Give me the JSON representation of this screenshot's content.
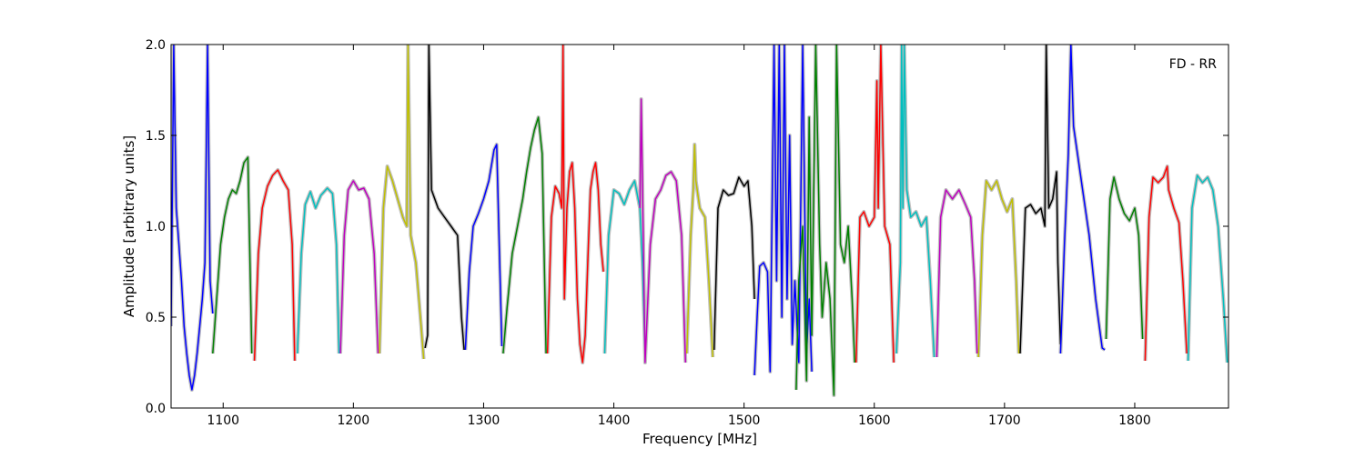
{
  "chart_data": {
    "type": "line",
    "annotation": "FD - RR",
    "xlabel": "Frequency [MHz]",
    "ylabel": "Amplitude [arbitrary units]",
    "xlim": [
      1060,
      1872
    ],
    "ylim": [
      0.0,
      2.0
    ],
    "xticks": [
      1100,
      1200,
      1300,
      1400,
      1500,
      1600,
      1700,
      1800
    ],
    "xtick_labels": [
      "1100",
      "1200",
      "1300",
      "1400",
      "1500",
      "1600",
      "1700",
      "1800"
    ],
    "yticks": [
      0.0,
      0.5,
      1.0,
      1.5,
      2.0
    ],
    "ytick_labels": [
      "0.0",
      "0.5",
      "1.0",
      "1.5",
      "2.0"
    ],
    "grid": false,
    "colors": {
      "background": "#c0c0c0",
      "blue": "#0000ff",
      "green": "#008000",
      "red": "#ff0000",
      "cyan": "#00bfbf",
      "magenta": "#bf00bf",
      "olive": "#bfbf00",
      "black": "#000000"
    },
    "series": [
      {
        "color": "#0000ff",
        "x": [
          1060,
          1062,
          1064,
          1066,
          1068,
          1070,
          1072,
          1074,
          1076,
          1078,
          1080,
          1082,
          1084,
          1086,
          1088,
          1090,
          1092
        ],
        "y": [
          0.45,
          2.0,
          1.1,
          0.9,
          0.7,
          0.45,
          0.3,
          0.18,
          0.1,
          0.18,
          0.3,
          0.45,
          0.6,
          0.8,
          2.0,
          0.7,
          0.52
        ]
      },
      {
        "color": "#008000",
        "x": [
          1092,
          1095,
          1098,
          1101,
          1104,
          1107,
          1110,
          1113,
          1116,
          1119,
          1122
        ],
        "y": [
          0.3,
          0.6,
          0.9,
          1.05,
          1.15,
          1.2,
          1.18,
          1.25,
          1.35,
          1.38,
          0.3
        ]
      },
      {
        "color": "#ff0000",
        "x": [
          1124,
          1127,
          1130,
          1134,
          1138,
          1142,
          1146,
          1150,
          1153,
          1155
        ],
        "y": [
          0.26,
          0.85,
          1.1,
          1.22,
          1.28,
          1.31,
          1.25,
          1.2,
          0.9,
          0.26
        ]
      },
      {
        "color": "#00bfbf",
        "x": [
          1157,
          1160,
          1163,
          1167,
          1171,
          1175,
          1180,
          1184,
          1187,
          1189
        ],
        "y": [
          0.3,
          0.85,
          1.12,
          1.19,
          1.1,
          1.17,
          1.21,
          1.18,
          0.9,
          0.3
        ]
      },
      {
        "color": "#bf00bf",
        "x": [
          1190,
          1193,
          1196,
          1200,
          1204,
          1208,
          1212,
          1216,
          1219
        ],
        "y": [
          0.3,
          0.95,
          1.2,
          1.25,
          1.2,
          1.21,
          1.15,
          0.85,
          0.3
        ]
      },
      {
        "color": "#bfbf00",
        "x": [
          1220,
          1223,
          1226,
          1230,
          1234,
          1238,
          1241,
          1242,
          1244,
          1248,
          1252,
          1254
        ],
        "y": [
          0.3,
          1.1,
          1.33,
          1.25,
          1.15,
          1.05,
          1.0,
          2.0,
          0.95,
          0.8,
          0.45,
          0.27
        ]
      },
      {
        "color": "#000000",
        "x": [
          1255,
          1257,
          1258,
          1260,
          1265,
          1270,
          1275,
          1280,
          1283,
          1285
        ],
        "y": [
          0.33,
          0.4,
          2.0,
          1.2,
          1.1,
          1.05,
          1.0,
          0.95,
          0.5,
          0.32
        ]
      },
      {
        "color": "#0000ff",
        "x": [
          1286,
          1289,
          1292,
          1296,
          1300,
          1304,
          1308,
          1310,
          1312,
          1314
        ],
        "y": [
          0.32,
          0.75,
          1.0,
          1.07,
          1.15,
          1.25,
          1.42,
          1.45,
          0.9,
          0.34
        ]
      },
      {
        "color": "#008000",
        "x": [
          1315,
          1318,
          1322,
          1326,
          1330,
          1333,
          1336,
          1339,
          1342,
          1345,
          1348
        ],
        "y": [
          0.3,
          0.55,
          0.85,
          1.0,
          1.15,
          1.3,
          1.43,
          1.53,
          1.6,
          1.4,
          0.3
        ]
      },
      {
        "color": "#ff0000",
        "x": [
          1349,
          1352,
          1355,
          1358,
          1360,
          1361,
          1362,
          1364,
          1366,
          1368,
          1370,
          1372,
          1374,
          1376,
          1378,
          1380,
          1382,
          1384,
          1386,
          1388,
          1390,
          1392
        ],
        "y": [
          0.3,
          1.05,
          1.22,
          1.18,
          1.1,
          2.0,
          0.6,
          1.1,
          1.3,
          1.35,
          1.1,
          0.6,
          0.35,
          0.25,
          0.4,
          0.8,
          1.2,
          1.3,
          1.35,
          1.2,
          0.9,
          0.75
        ]
      },
      {
        "color": "#00bfbf",
        "x": [
          1393,
          1396,
          1400,
          1404,
          1408,
          1412,
          1416,
          1420,
          1422,
          1424
        ],
        "y": [
          0.3,
          0.95,
          1.2,
          1.18,
          1.12,
          1.2,
          1.25,
          1.1,
          0.8,
          0.3
        ]
      },
      {
        "color": "#bf00bf",
        "x": [
          1420,
          1421,
          1424,
          1428,
          1432,
          1436,
          1440,
          1444,
          1448,
          1452,
          1455
        ],
        "y": [
          1.1,
          1.7,
          0.25,
          0.9,
          1.15,
          1.2,
          1.28,
          1.3,
          1.25,
          0.95,
          0.25
        ]
      },
      {
        "color": "#bfbf00",
        "x": [
          1456,
          1459,
          1461,
          1462,
          1463,
          1466,
          1470,
          1473,
          1476
        ],
        "y": [
          0.3,
          0.95,
          1.2,
          1.45,
          1.25,
          1.1,
          1.05,
          0.7,
          0.28
        ]
      },
      {
        "color": "#000000",
        "x": [
          1477,
          1480,
          1484,
          1488,
          1492,
          1496,
          1500,
          1503,
          1506,
          1508
        ],
        "y": [
          0.32,
          1.1,
          1.2,
          1.17,
          1.18,
          1.27,
          1.22,
          1.25,
          1.0,
          0.6
        ]
      },
      {
        "color": "#0000ff",
        "x": [
          1508,
          1510,
          1512,
          1515,
          1518,
          1520,
          1523,
          1525,
          1527,
          1529,
          1531,
          1533,
          1535,
          1537,
          1539,
          1542,
          1545,
          1548,
          1550,
          1552
        ],
        "y": [
          0.18,
          0.5,
          0.78,
          0.8,
          0.75,
          0.2,
          2.0,
          0.7,
          2.0,
          0.5,
          2.0,
          0.6,
          1.5,
          0.35,
          0.7,
          0.25,
          2.0,
          0.3,
          0.6,
          0.2
        ]
      },
      {
        "color": "#008000",
        "x": [
          1540,
          1542,
          1545,
          1548,
          1550,
          1552,
          1555,
          1558,
          1560,
          1563,
          1566,
          1569,
          1571,
          1574,
          1577,
          1580,
          1583,
          1585
        ],
        "y": [
          0.1,
          0.7,
          1.0,
          0.15,
          1.6,
          0.4,
          2.0,
          0.9,
          0.5,
          0.8,
          0.6,
          0.07,
          2.0,
          0.9,
          0.8,
          1.0,
          0.6,
          0.25
        ]
      },
      {
        "color": "#ff0000",
        "x": [
          1586,
          1589,
          1592,
          1596,
          1600,
          1602,
          1603,
          1605,
          1608,
          1612,
          1615
        ],
        "y": [
          0.25,
          1.05,
          1.08,
          1.0,
          1.05,
          1.8,
          1.1,
          2.0,
          1.0,
          0.9,
          0.25
        ]
      },
      {
        "color": "#00bfbf",
        "x": [
          1617,
          1620,
          1621,
          1622,
          1623,
          1625,
          1628,
          1632,
          1636,
          1640,
          1643,
          1646
        ],
        "y": [
          0.3,
          0.8,
          2.0,
          1.1,
          2.0,
          1.2,
          1.05,
          1.08,
          1.0,
          1.05,
          0.7,
          0.28
        ]
      },
      {
        "color": "#bf00bf",
        "x": [
          1648,
          1651,
          1655,
          1660,
          1665,
          1670,
          1674,
          1677,
          1679
        ],
        "y": [
          0.28,
          1.05,
          1.2,
          1.15,
          1.2,
          1.12,
          1.05,
          0.7,
          0.3
        ]
      },
      {
        "color": "#bfbf00",
        "x": [
          1680,
          1683,
          1686,
          1690,
          1694,
          1698,
          1702,
          1706,
          1709,
          1711
        ],
        "y": [
          0.28,
          0.95,
          1.25,
          1.2,
          1.25,
          1.15,
          1.08,
          1.15,
          0.7,
          0.3
        ]
      },
      {
        "color": "#000000",
        "x": [
          1712,
          1716,
          1720,
          1724,
          1728,
          1731,
          1732,
          1734,
          1737,
          1740,
          1741,
          1743
        ],
        "y": [
          0.3,
          1.1,
          1.12,
          1.07,
          1.1,
          1.0,
          2.0,
          1.1,
          1.15,
          1.3,
          0.8,
          0.35
        ]
      },
      {
        "color": "#0000ff",
        "x": [
          1743,
          1746,
          1749,
          1751,
          1753,
          1756,
          1760,
          1765,
          1770,
          1775,
          1777
        ],
        "y": [
          0.3,
          0.9,
          1.4,
          2.0,
          1.55,
          1.4,
          1.2,
          0.95,
          0.6,
          0.33,
          0.32
        ]
      },
      {
        "color": "#008000",
        "x": [
          1778,
          1781,
          1784,
          1788,
          1792,
          1796,
          1800,
          1803,
          1806
        ],
        "y": [
          0.38,
          1.15,
          1.27,
          1.15,
          1.07,
          1.03,
          1.1,
          0.95,
          0.38
        ]
      },
      {
        "color": "#ff0000",
        "x": [
          1808,
          1811,
          1814,
          1818,
          1822,
          1825,
          1826,
          1830,
          1834,
          1837,
          1840
        ],
        "y": [
          0.26,
          1.05,
          1.27,
          1.24,
          1.27,
          1.33,
          1.2,
          1.1,
          1.02,
          0.7,
          0.3
        ]
      },
      {
        "color": "#00bfbf",
        "x": [
          1841,
          1844,
          1848,
          1852,
          1856,
          1860,
          1864,
          1868,
          1871
        ],
        "y": [
          0.26,
          1.1,
          1.28,
          1.24,
          1.27,
          1.2,
          1.0,
          0.6,
          0.25
        ]
      }
    ]
  }
}
